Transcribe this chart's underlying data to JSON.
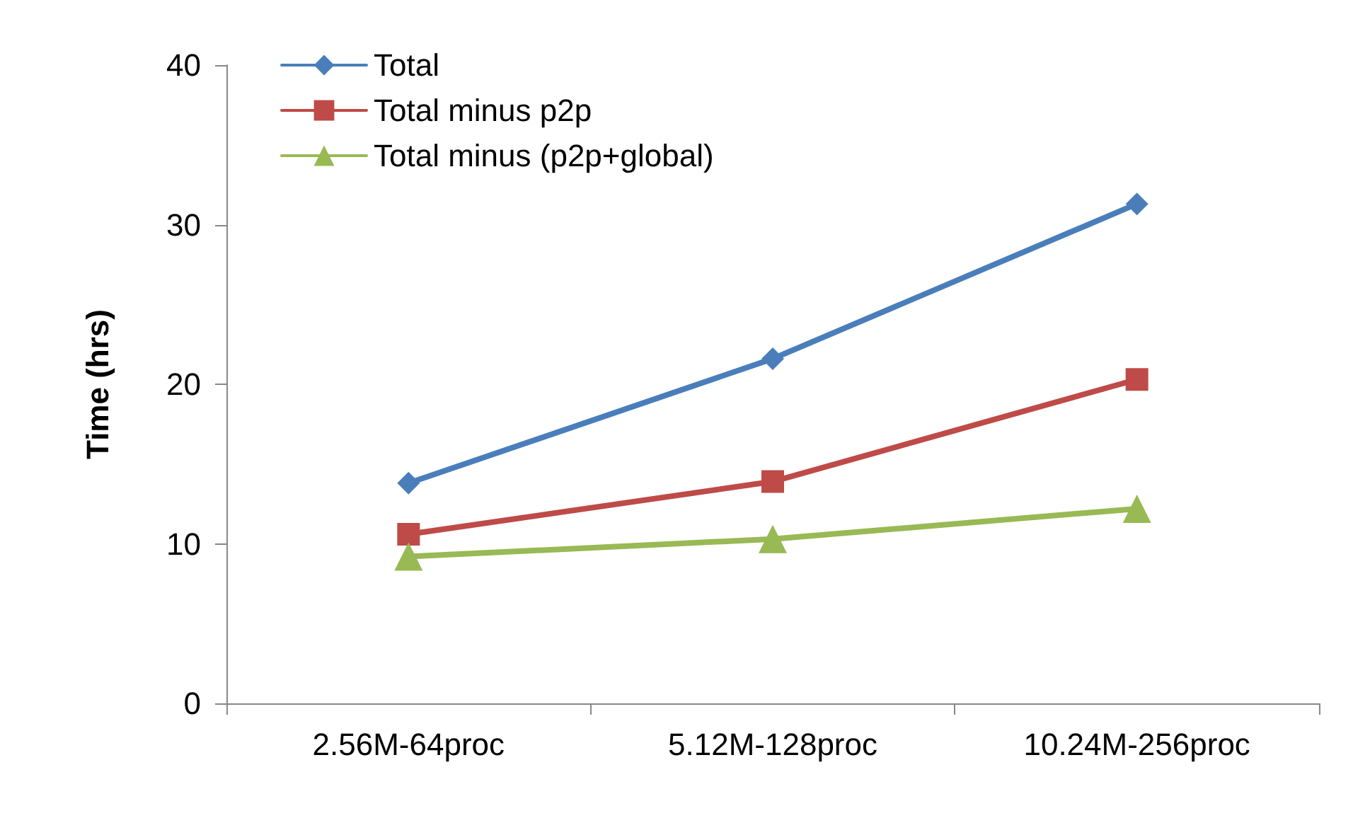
{
  "chart_data": {
    "type": "line",
    "ylabel": "Time (hrs)",
    "categories": [
      "2.56M-64proc",
      "5.12M-128proc",
      "10.24M-256proc"
    ],
    "series": [
      {
        "name": "Total",
        "color": "#4a7ebb",
        "marker": "diamond",
        "values": [
          13.8,
          21.6,
          31.3
        ]
      },
      {
        "name": "Total minus p2p",
        "color": "#be4b48",
        "marker": "square",
        "values": [
          10.6,
          13.9,
          20.3
        ]
      },
      {
        "name": "Total minus (p2p+global)",
        "color": "#98b954",
        "marker": "triangle",
        "values": [
          9.2,
          10.3,
          12.2
        ]
      }
    ],
    "ylim": [
      0,
      40
    ],
    "yticks": [
      0,
      10,
      20,
      30,
      40
    ],
    "grid": false,
    "legend": "top left",
    "line_style": "solid"
  }
}
